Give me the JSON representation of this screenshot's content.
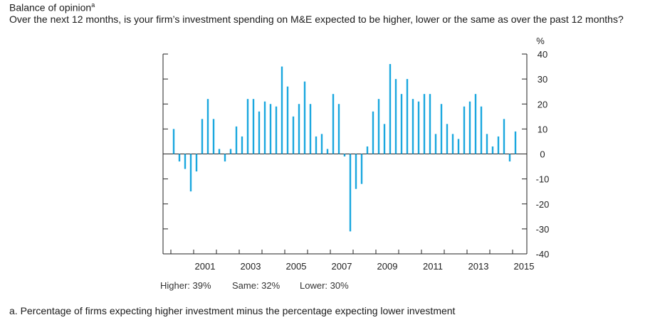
{
  "title": "Balance of opinion",
  "title_footnote_mark": "a",
  "subtitle": "Over the next 12 months, is your firm’s investment spending on M&E expected to be higher, lower or the same as over the past 12 months?",
  "footnote": "a. Percentage of firms expecting higher investment minus the percentage expecting lower investment",
  "latest_shares": {
    "higher": "Higher: 39%",
    "same": "Same: 32%",
    "lower": "Lower: 30%"
  },
  "chart_data": {
    "type": "bar",
    "color": "#1aa7df",
    "yunit": "%",
    "ylim": [
      -40,
      40
    ],
    "yticks": [
      40,
      30,
      20,
      10,
      0,
      -10,
      -20,
      -30,
      -40
    ],
    "xtick_labels": [
      "2001",
      "2003",
      "2005",
      "2007",
      "2009",
      "2011",
      "2013",
      "2015"
    ],
    "grid": false,
    "start_period": "2000 Q1",
    "frequency": "quarterly",
    "values": [
      10,
      -3,
      -6,
      -15,
      -7,
      14,
      22,
      14,
      2,
      -3,
      2,
      11,
      7,
      22,
      22,
      17,
      21,
      20,
      19,
      35,
      27,
      15,
      20,
      29,
      20,
      7,
      8,
      2,
      24,
      20,
      -1,
      -31,
      -14,
      -12,
      3,
      17,
      22,
      12,
      36,
      30,
      24,
      30,
      22,
      21,
      24,
      24,
      8,
      20,
      12,
      8,
      6,
      19,
      21,
      24,
      19,
      8,
      3,
      7,
      14,
      -3,
      9
    ]
  }
}
